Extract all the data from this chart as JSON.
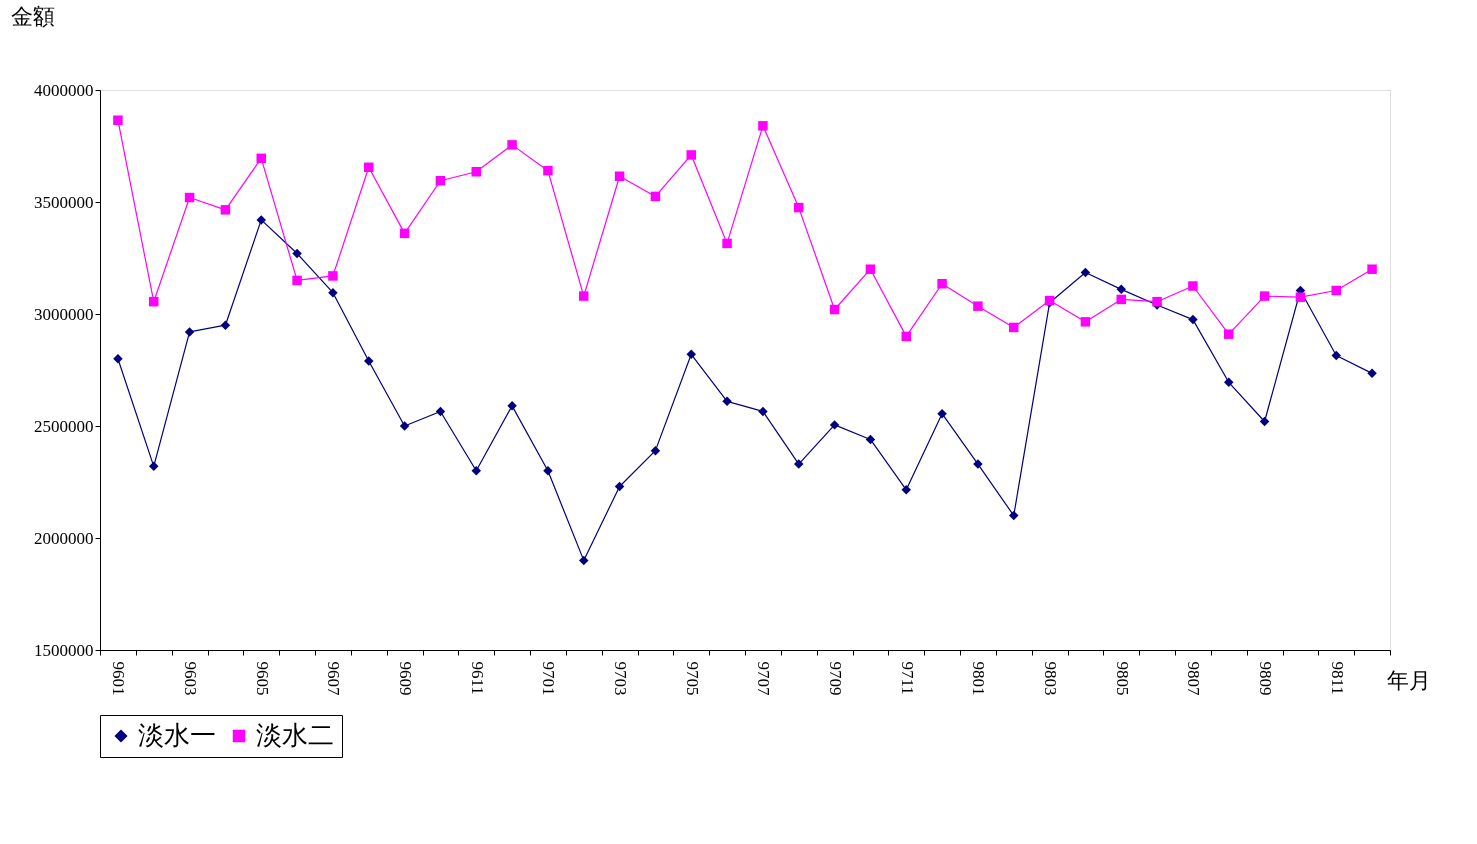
{
  "chart_data": {
    "type": "line",
    "xlabel": "年月",
    "ylabel": "金額",
    "categories": [
      "9601",
      null,
      "9603",
      null,
      "9605",
      null,
      "9607",
      null,
      "9609",
      null,
      "9611",
      null,
      "9701",
      null,
      "9703",
      null,
      "9705",
      null,
      "9707",
      null,
      "9709",
      null,
      "9711",
      null,
      "9801",
      null,
      "9803",
      null,
      "9805",
      null,
      "9807",
      null,
      "9809",
      null,
      "9811",
      null
    ],
    "series": [
      {
        "name": "淡水一",
        "color": "#000080",
        "marker": "diamond",
        "values": [
          2800000,
          2320000,
          2920000,
          2950000,
          3420000,
          3270000,
          3095000,
          2790000,
          2500000,
          2565000,
          2300000,
          2590000,
          2300000,
          1900000,
          2230000,
          2390000,
          2820000,
          2610000,
          2565000,
          2330000,
          2505000,
          2440000,
          2215000,
          2555000,
          2330000,
          2100000,
          3050000,
          3185000,
          3110000,
          3040000,
          2975000,
          2695000,
          2520000,
          3105000,
          2815000,
          2735000
        ]
      },
      {
        "name": "淡水二",
        "color": "#ff00ff",
        "marker": "square",
        "values": [
          3865000,
          3055000,
          3520000,
          3465000,
          3695000,
          3150000,
          3170000,
          3655000,
          3360000,
          3595000,
          3635000,
          3755000,
          3640000,
          3080000,
          3615000,
          3525000,
          3710000,
          3315000,
          3840000,
          3475000,
          3020000,
          3200000,
          2900000,
          3135000,
          3035000,
          2940000,
          3060000,
          2965000,
          3065000,
          3055000,
          3125000,
          2910000,
          3080000,
          3075000,
          3105000,
          3200000
        ]
      }
    ],
    "ylim": [
      1500000,
      4000000
    ],
    "yticks": [
      1500000,
      2000000,
      2500000,
      3000000,
      3500000,
      4000000
    ],
    "grid": false,
    "legend": "bottom",
    "line_style": "solid"
  }
}
